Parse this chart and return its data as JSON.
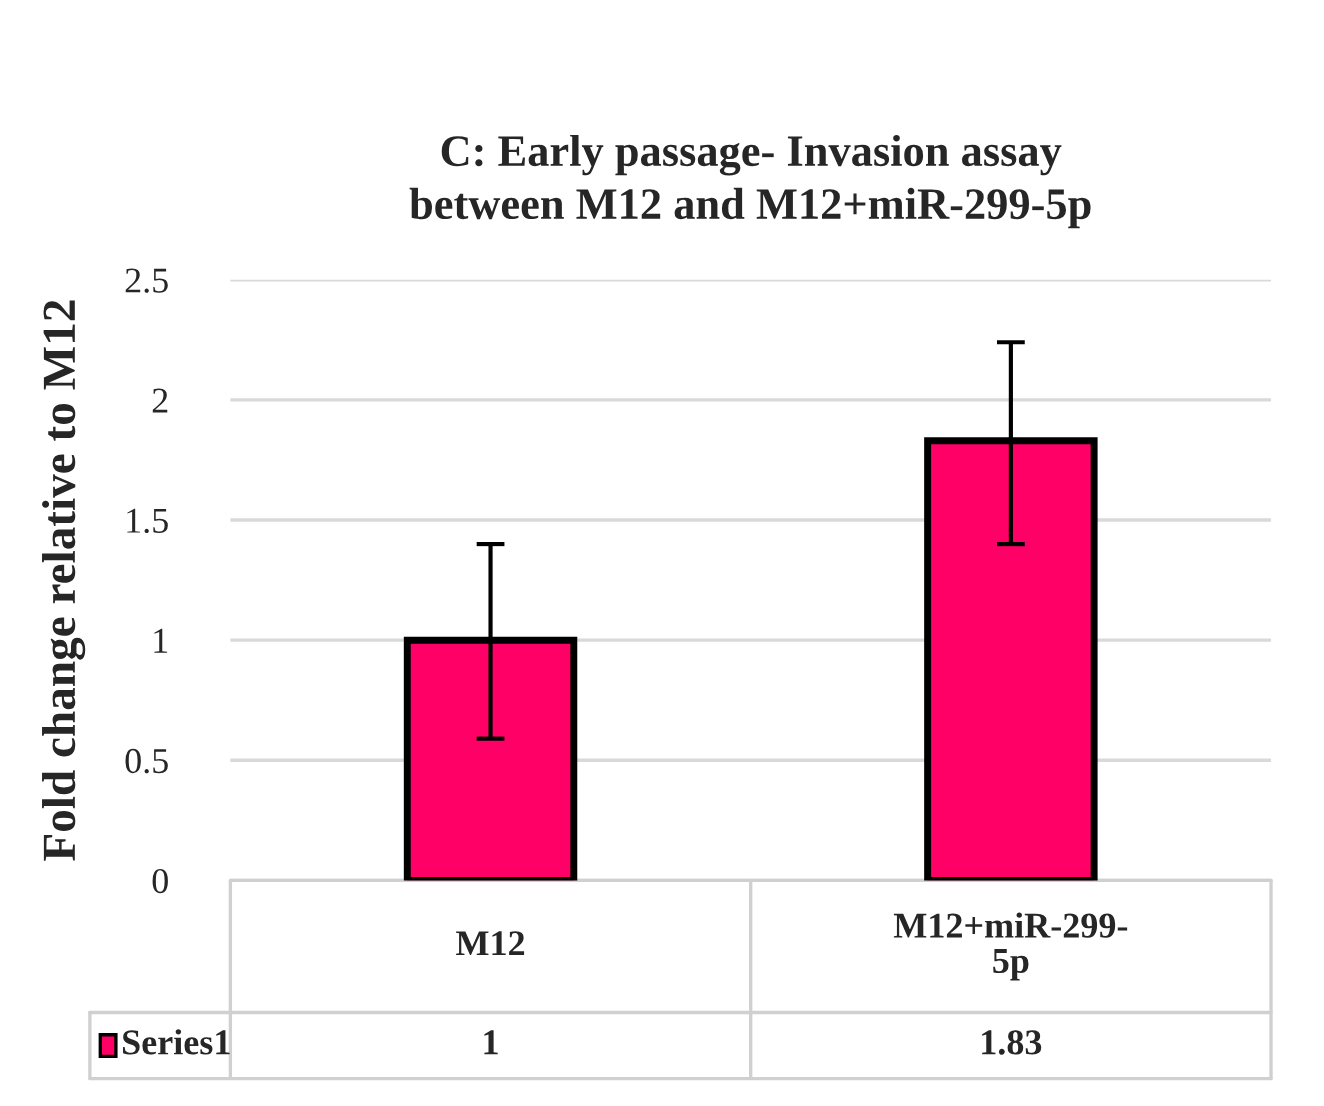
{
  "chart_data": {
    "type": "bar",
    "title": "C: Early passage- Invasion assay\nbetween M12 and M12+miR-299-5p",
    "ylabel": "Fold change relative to M12",
    "categories": [
      "M12",
      "M12+miR-299-\n5p"
    ],
    "series": [
      {
        "name": "Series1",
        "color": "#ff0066",
        "values": [
          1,
          1.83
        ],
        "errors": [
          [
            0.59,
            1.4
          ],
          [
            1.4,
            2.24
          ]
        ]
      }
    ],
    "ylim": [
      0,
      2.5
    ],
    "yticks": [
      0,
      0.5,
      1,
      1.5,
      2,
      2.5
    ],
    "grid": "y",
    "data_labels": true,
    "legend": "bottom"
  }
}
